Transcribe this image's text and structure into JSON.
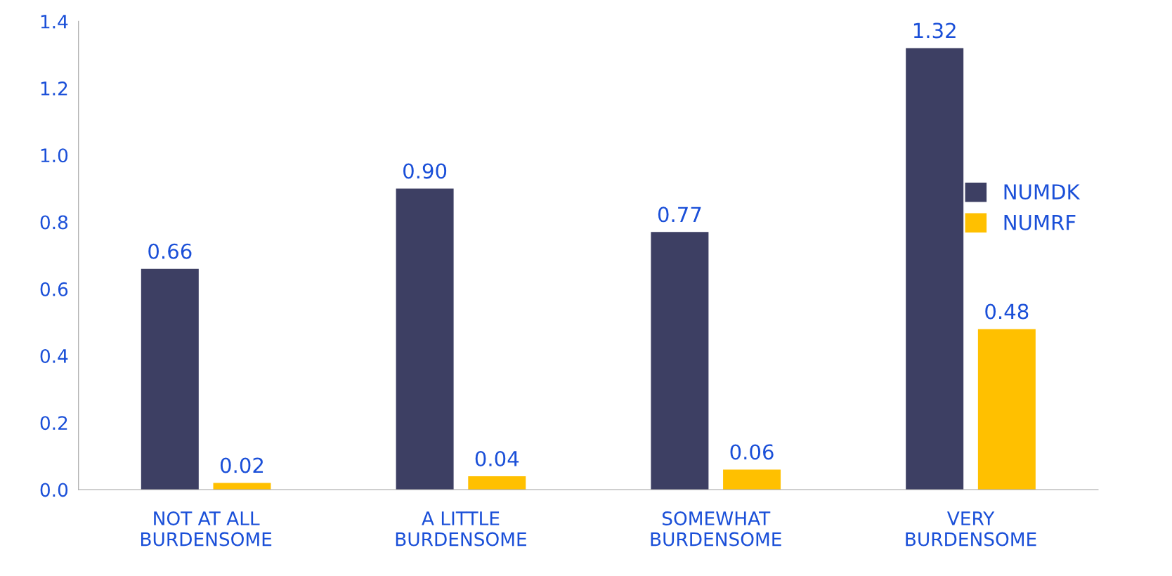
{
  "chart_data": {
    "type": "bar",
    "categories": [
      "NOT AT ALL\nBURDENSOME",
      "A LITTLE\nBURDENSOME",
      "SOMEWHAT\nBURDENSOME",
      "VERY\nBURDENSOME"
    ],
    "series": [
      {
        "name": "NUMDK",
        "color": "#3d3f63",
        "values": [
          0.66,
          0.9,
          0.77,
          1.32
        ],
        "value_labels": [
          "0.66",
          "0.90",
          "0.77",
          "1.32"
        ]
      },
      {
        "name": "NUMRF",
        "color": "#ffc000",
        "values": [
          0.02,
          0.04,
          0.06,
          0.48
        ],
        "value_labels": [
          "0.02",
          "0.04",
          "0.06",
          "0.48"
        ]
      }
    ],
    "ylim": [
      0,
      1.4
    ],
    "yticks": [
      {
        "value": 0,
        "label": "0.0"
      },
      {
        "value": 0.2,
        "label": "0.2"
      },
      {
        "value": 0.4,
        "label": "0.4"
      },
      {
        "value": 0.6,
        "label": "0.6"
      },
      {
        "value": 0.8,
        "label": "0.8"
      },
      {
        "value": 1.0,
        "label": "1.0"
      },
      {
        "value": 1.2,
        "label": "1.2"
      },
      {
        "value": 1.4,
        "label": "1.4"
      }
    ],
    "grid": false,
    "legend": "right"
  }
}
